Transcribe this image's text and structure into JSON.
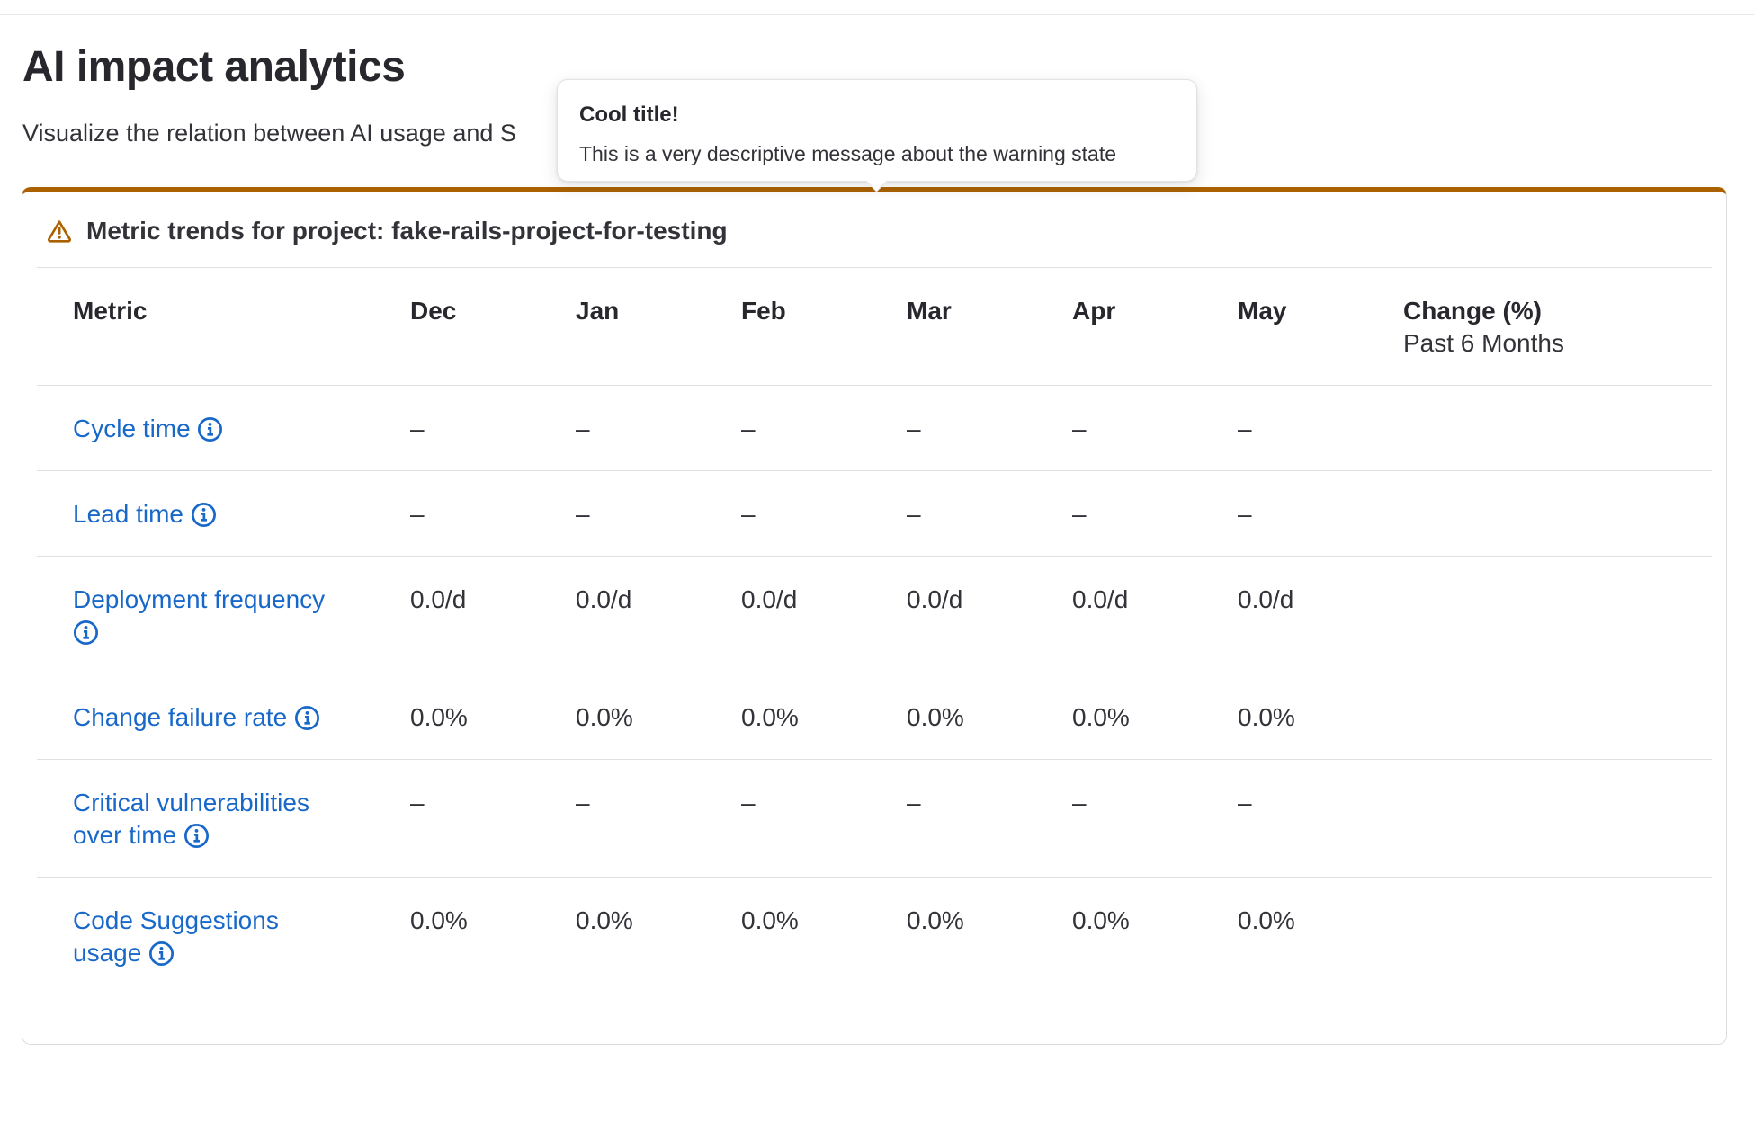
{
  "page": {
    "title": "AI impact analytics",
    "subtitle_visible": "Visualize the relation between AI usage and S"
  },
  "popover": {
    "title": "Cool title!",
    "message": "This is a very descriptive message about the warning state"
  },
  "card": {
    "header_title": "Metric trends for project: fake-rails-project-for-testing"
  },
  "table": {
    "metric_header": "Metric",
    "month_headers": [
      "Dec",
      "Jan",
      "Feb",
      "Mar",
      "Apr",
      "May"
    ],
    "change_header_line1": "Change (%)",
    "change_header_line2": "Past 6 Months",
    "rows": [
      {
        "metric_lines": [
          "Cycle time"
        ],
        "icon_on_new_line": false,
        "values": [
          "–",
          "–",
          "–",
          "–",
          "–",
          "–"
        ],
        "change": ""
      },
      {
        "metric_lines": [
          "Lead time"
        ],
        "icon_on_new_line": false,
        "values": [
          "–",
          "–",
          "–",
          "–",
          "–",
          "–"
        ],
        "change": ""
      },
      {
        "metric_lines": [
          "Deployment frequency"
        ],
        "icon_on_new_line": true,
        "values": [
          "0.0/d",
          "0.0/d",
          "0.0/d",
          "0.0/d",
          "0.0/d",
          "0.0/d"
        ],
        "change": ""
      },
      {
        "metric_lines": [
          "Change failure rate"
        ],
        "icon_on_new_line": false,
        "values": [
          "0.0%",
          "0.0%",
          "0.0%",
          "0.0%",
          "0.0%",
          "0.0%"
        ],
        "change": ""
      },
      {
        "metric_lines": [
          "Critical vulnerabilities",
          "over time"
        ],
        "icon_on_new_line": false,
        "values": [
          "–",
          "–",
          "–",
          "–",
          "–",
          "–"
        ],
        "change": ""
      },
      {
        "metric_lines": [
          "Code Suggestions",
          "usage"
        ],
        "icon_on_new_line": false,
        "values": [
          "0.0%",
          "0.0%",
          "0.0%",
          "0.0%",
          "0.0%",
          "0.0%"
        ],
        "change": ""
      }
    ]
  },
  "colors": {
    "warning_accent": "#ab6100",
    "link_blue": "#1868c9",
    "text_primary": "#333238",
    "row_border": "#e0e0e3",
    "card_border": "#dcdcde"
  },
  "icons": {
    "card_header": "warning-triangle-icon",
    "metric_info": "information-circle-icon"
  }
}
